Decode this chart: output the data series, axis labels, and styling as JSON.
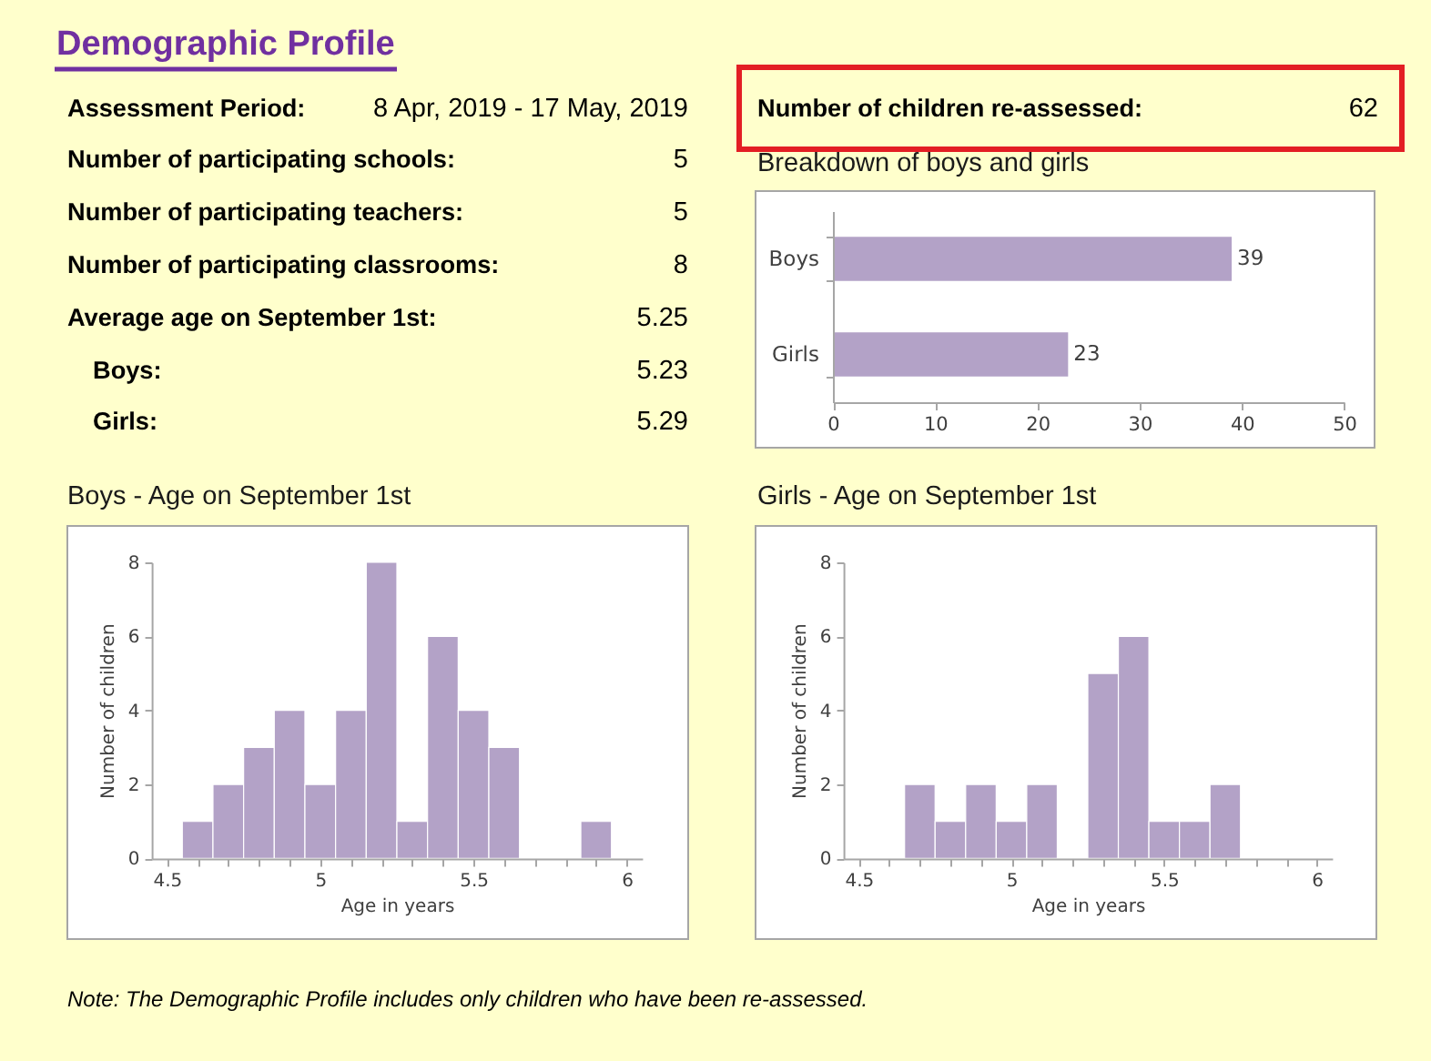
{
  "chart_data": [
    {
      "type": "other",
      "title": "Demographic Profile",
      "annotations": [
        "Assessment Period:",
        "8 Apr, 2019 - 17 May, 2019",
        "Number of participating schools:",
        "5",
        "Number of participating teachers:",
        "5",
        "Number of participating classrooms:",
        "8",
        "Average age on September 1st:",
        "5.25",
        "Boys:",
        "5.23",
        "Girls:",
        "5.29",
        "Number of children re-assessed:",
        "62",
        "Note: The Demographic Profile includes only children who have been re-assessed."
      ]
    },
    {
      "type": "bar",
      "title": "Breakdown of boys and girls",
      "orientation": "horizontal",
      "categories": [
        "Boys",
        "Girls"
      ],
      "values": [
        39,
        23
      ],
      "color": "#b3a2c7",
      "xlim": [
        0,
        50
      ],
      "xticks": [
        0,
        10,
        20,
        30,
        40,
        50
      ],
      "data_labels": true
    },
    {
      "type": "histogram",
      "title": "Boys - Age on September 1st",
      "xlabel": "Age in years",
      "ylabel": "Number of children",
      "bins": [
        4.55,
        4.65,
        4.75,
        4.85,
        4.95,
        5.05,
        5.15,
        5.25,
        5.35,
        5.45,
        5.55,
        5.65,
        5.75,
        5.85,
        5.95
      ],
      "values": [
        1,
        2,
        3,
        4,
        2,
        4,
        8,
        1,
        6,
        4,
        3,
        0,
        0,
        1
      ],
      "color": "#b3a2c7",
      "xlim": [
        4.45,
        6.05
      ],
      "xticks": [
        4.5,
        {
          "value": 4.6,
          "label": null
        },
        {
          "value": 4.7,
          "label": null
        },
        {
          "value": 4.8,
          "label": null
        },
        {
          "value": 4.9,
          "label": null
        },
        5,
        {
          "value": 5.1,
          "label": null
        },
        {
          "value": 5.2,
          "label": null
        },
        {
          "value": 5.3,
          "label": null
        },
        {
          "value": 5.4,
          "label": null
        },
        5.5,
        {
          "value": 5.6,
          "label": null
        },
        {
          "value": 5.7,
          "label": null
        },
        {
          "value": 5.8,
          "label": null
        },
        {
          "value": 5.9,
          "label": null
        },
        6
      ],
      "ylim": [
        0,
        8
      ],
      "yticks": [
        0,
        2,
        4,
        6,
        8
      ]
    },
    {
      "type": "histogram",
      "title": "Girls - Age on September 1st",
      "xlabel": "Age in years",
      "ylabel": "Number of children",
      "bins": [
        4.65,
        4.75,
        4.85,
        4.95,
        5.05,
        5.15,
        5.25,
        5.35,
        5.45,
        5.55,
        5.65,
        5.75
      ],
      "values": [
        2,
        1,
        2,
        1,
        2,
        0,
        5,
        6,
        1,
        1,
        2
      ],
      "color": "#b3a2c7",
      "xlim": [
        4.45,
        6.05
      ],
      "xticks": [
        4.5,
        {
          "value": 4.6,
          "label": null
        },
        {
          "value": 4.7,
          "label": null
        },
        {
          "value": 4.8,
          "label": null
        },
        {
          "value": 4.9,
          "label": null
        },
        5,
        {
          "value": 5.1,
          "label": null
        },
        {
          "value": 5.2,
          "label": null
        },
        {
          "value": 5.3,
          "label": null
        },
        {
          "value": 5.4,
          "label": null
        },
        5.5,
        {
          "value": 5.6,
          "label": null
        },
        {
          "value": 5.7,
          "label": null
        },
        {
          "value": 5.8,
          "label": null
        },
        {
          "value": 5.9,
          "label": null
        },
        6
      ],
      "ylim": [
        0,
        8
      ],
      "yticks": [
        0,
        2,
        4,
        6,
        8
      ]
    }
  ]
}
